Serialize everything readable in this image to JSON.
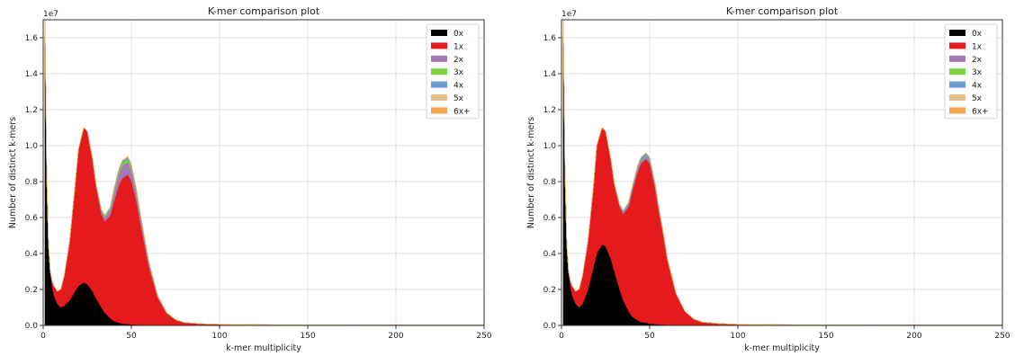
{
  "chart_data": [
    {
      "type": "area",
      "title": "K-mer comparison plot",
      "xlabel": "k-mer multiplicity",
      "ylabel": "Number of distinct k-mers",
      "y_offset_label": "1e7",
      "xlim": [
        0,
        250
      ],
      "ylim": [
        0,
        1.7
      ],
      "xticks": [
        0,
        50,
        100,
        150,
        200,
        250
      ],
      "yticks": [
        0.0,
        0.2,
        0.4,
        0.6,
        0.8,
        1.0,
        1.2,
        1.4,
        1.6
      ],
      "xtick_labels": [
        "0",
        "50",
        "100",
        "150",
        "200",
        "250"
      ],
      "ytick_labels": [
        "0.0",
        "0.2",
        "0.4",
        "0.6",
        "0.8",
        "1.0",
        "1.2",
        "1.4",
        "1.6"
      ],
      "grid": true,
      "legend_position": "top-right",
      "x": [
        1,
        2,
        3,
        4,
        5,
        6,
        8,
        10,
        12,
        15,
        18,
        20,
        23,
        25,
        28,
        30,
        33,
        35,
        38,
        40,
        43,
        45,
        48,
        50,
        53,
        55,
        58,
        60,
        65,
        70,
        75,
        80,
        90,
        100,
        125,
        150,
        200,
        250
      ],
      "series": [
        {
          "name": "0x",
          "color": "#000000",
          "values": [
            1.7,
            0.83,
            0.45,
            0.3,
            0.22,
            0.17,
            0.12,
            0.1,
            0.11,
            0.14,
            0.19,
            0.22,
            0.24,
            0.23,
            0.19,
            0.15,
            0.1,
            0.07,
            0.04,
            0.025,
            0.015,
            0.01,
            0.008,
            0.006,
            0.005,
            0.004,
            0.003,
            0.003,
            0.002,
            0.002,
            0.001,
            0.001,
            0.001,
            0,
            0,
            0,
            0,
            0
          ]
        },
        {
          "name": "1x",
          "color": "#e41a1c",
          "values": [
            0,
            0,
            0,
            0,
            0.03,
            0.05,
            0.07,
            0.1,
            0.17,
            0.33,
            0.58,
            0.76,
            0.86,
            0.85,
            0.73,
            0.62,
            0.52,
            0.51,
            0.57,
            0.66,
            0.77,
            0.81,
            0.83,
            0.8,
            0.68,
            0.57,
            0.42,
            0.32,
            0.15,
            0.065,
            0.03,
            0.015,
            0.008,
            0.006,
            0.004,
            0.003,
            0.002,
            0.002
          ]
        },
        {
          "name": "2x",
          "color": "#a678b5",
          "values": [
            0,
            0,
            0,
            0,
            0,
            0,
            0,
            0,
            0,
            0,
            0,
            0,
            0,
            0,
            0.005,
            0.01,
            0.015,
            0.02,
            0.03,
            0.045,
            0.06,
            0.07,
            0.07,
            0.06,
            0.045,
            0.035,
            0.025,
            0.018,
            0.008,
            0.003,
            0.001,
            0,
            0,
            0,
            0,
            0,
            0,
            0
          ]
        },
        {
          "name": "3x",
          "color": "#7fd13b",
          "values": [
            0,
            0,
            0,
            0,
            0,
            0,
            0,
            0,
            0,
            0,
            0,
            0,
            0,
            0,
            0.002,
            0.004,
            0.006,
            0.008,
            0.01,
            0.013,
            0.015,
            0.016,
            0.017,
            0.015,
            0.012,
            0.009,
            0.006,
            0.004,
            0.002,
            0.001,
            0,
            0,
            0,
            0,
            0,
            0,
            0,
            0
          ]
        },
        {
          "name": "4x",
          "color": "#6a9bd1",
          "values": [
            0,
            0,
            0,
            0,
            0,
            0,
            0,
            0,
            0,
            0,
            0,
            0,
            0,
            0,
            0.001,
            0.002,
            0.003,
            0.004,
            0.006,
            0.008,
            0.01,
            0.01,
            0.01,
            0.009,
            0.007,
            0.005,
            0.004,
            0.003,
            0.001,
            0.001,
            0,
            0,
            0,
            0,
            0,
            0,
            0,
            0
          ]
        },
        {
          "name": "5x",
          "color": "#e8bf8c",
          "values": [
            0,
            0,
            0,
            0,
            0,
            0,
            0,
            0,
            0,
            0,
            0,
            0,
            0,
            0,
            0,
            0,
            0.001,
            0.001,
            0.002,
            0.003,
            0.003,
            0.003,
            0.003,
            0.003,
            0.002,
            0.002,
            0.001,
            0.001,
            0,
            0,
            0,
            0,
            0,
            0,
            0,
            0,
            0,
            0
          ]
        },
        {
          "name": "6x+",
          "color": "#f5a84a",
          "values": [
            0,
            0,
            0,
            0,
            0,
            0,
            0,
            0,
            0,
            0,
            0,
            0,
            0,
            0,
            0,
            0,
            0.001,
            0.001,
            0.001,
            0.002,
            0.002,
            0.002,
            0.002,
            0.002,
            0.002,
            0.001,
            0.001,
            0.001,
            0,
            0,
            0,
            0,
            0,
            0,
            0,
            0,
            0,
            0
          ]
        }
      ]
    },
    {
      "type": "area",
      "title": "K-mer comparison plot",
      "xlabel": "k-mer multiplicity",
      "ylabel": "Number of distinct k-mers",
      "y_offset_label": "1e7",
      "xlim": [
        0,
        250
      ],
      "ylim": [
        0,
        1.7
      ],
      "xticks": [
        0,
        50,
        100,
        150,
        200,
        250
      ],
      "yticks": [
        0.0,
        0.2,
        0.4,
        0.6,
        0.8,
        1.0,
        1.2,
        1.4,
        1.6
      ],
      "xtick_labels": [
        "0",
        "50",
        "100",
        "150",
        "200",
        "250"
      ],
      "ytick_labels": [
        "0.0",
        "0.2",
        "0.4",
        "0.6",
        "0.8",
        "1.0",
        "1.2",
        "1.4",
        "1.6"
      ],
      "grid": true,
      "legend_position": "top-right",
      "x": [
        1,
        2,
        3,
        4,
        5,
        6,
        8,
        10,
        12,
        15,
        18,
        20,
        23,
        25,
        28,
        30,
        33,
        35,
        38,
        40,
        43,
        45,
        48,
        50,
        53,
        55,
        58,
        60,
        65,
        70,
        75,
        80,
        90,
        100,
        125,
        150,
        200,
        250
      ],
      "series": [
        {
          "name": "0x",
          "color": "#000000",
          "values": [
            1.7,
            0.83,
            0.45,
            0.3,
            0.22,
            0.17,
            0.12,
            0.1,
            0.12,
            0.2,
            0.32,
            0.4,
            0.45,
            0.44,
            0.37,
            0.3,
            0.2,
            0.14,
            0.08,
            0.05,
            0.03,
            0.02,
            0.015,
            0.01,
            0.008,
            0.006,
            0.005,
            0.004,
            0.003,
            0.002,
            0.001,
            0.001,
            0.001,
            0,
            0,
            0,
            0,
            0
          ]
        },
        {
          "name": "1x",
          "color": "#e41a1c",
          "values": [
            0,
            0,
            0,
            0,
            0.03,
            0.05,
            0.07,
            0.1,
            0.16,
            0.27,
            0.44,
            0.6,
            0.65,
            0.64,
            0.55,
            0.48,
            0.46,
            0.48,
            0.58,
            0.69,
            0.82,
            0.88,
            0.91,
            0.89,
            0.76,
            0.64,
            0.48,
            0.36,
            0.17,
            0.075,
            0.034,
            0.017,
            0.009,
            0.006,
            0.004,
            0.003,
            0.002,
            0.002
          ]
        },
        {
          "name": "2x",
          "color": "#a678b5",
          "values": [
            0,
            0,
            0,
            0,
            0,
            0,
            0,
            0,
            0,
            0,
            0,
            0,
            0,
            0,
            0.002,
            0.004,
            0.006,
            0.008,
            0.01,
            0.012,
            0.014,
            0.015,
            0.015,
            0.014,
            0.012,
            0.01,
            0.007,
            0.005,
            0.002,
            0.001,
            0,
            0,
            0,
            0,
            0,
            0,
            0,
            0
          ]
        },
        {
          "name": "3x",
          "color": "#7fd13b",
          "values": [
            0,
            0,
            0,
            0,
            0,
            0,
            0,
            0,
            0,
            0,
            0,
            0,
            0,
            0,
            0,
            0.001,
            0.001,
            0.002,
            0.002,
            0.003,
            0.003,
            0.003,
            0.003,
            0.003,
            0.002,
            0.002,
            0.001,
            0.001,
            0,
            0,
            0,
            0,
            0,
            0,
            0,
            0,
            0,
            0
          ]
        },
        {
          "name": "4x",
          "color": "#6a9bd1",
          "values": [
            0,
            0,
            0,
            0,
            0,
            0,
            0,
            0,
            0,
            0,
            0,
            0,
            0,
            0,
            0.002,
            0.004,
            0.006,
            0.008,
            0.01,
            0.012,
            0.014,
            0.015,
            0.015,
            0.014,
            0.012,
            0.01,
            0.007,
            0.005,
            0.002,
            0.001,
            0,
            0,
            0,
            0,
            0,
            0,
            0,
            0
          ]
        },
        {
          "name": "5x",
          "color": "#e8bf8c",
          "values": [
            0,
            0,
            0,
            0,
            0,
            0,
            0,
            0,
            0,
            0,
            0,
            0,
            0,
            0,
            0,
            0,
            0.001,
            0.001,
            0.001,
            0.001,
            0.002,
            0.002,
            0.002,
            0.002,
            0.001,
            0.001,
            0.001,
            0,
            0,
            0,
            0,
            0,
            0,
            0,
            0,
            0,
            0,
            0
          ]
        },
        {
          "name": "6x+",
          "color": "#f5a84a",
          "values": [
            0,
            0,
            0,
            0,
            0,
            0,
            0,
            0,
            0,
            0,
            0,
            0,
            0,
            0,
            0,
            0,
            0.001,
            0.001,
            0.001,
            0.001,
            0.001,
            0.001,
            0.001,
            0.001,
            0.001,
            0.001,
            0,
            0,
            0,
            0,
            0,
            0,
            0,
            0,
            0,
            0,
            0,
            0
          ]
        }
      ]
    }
  ]
}
